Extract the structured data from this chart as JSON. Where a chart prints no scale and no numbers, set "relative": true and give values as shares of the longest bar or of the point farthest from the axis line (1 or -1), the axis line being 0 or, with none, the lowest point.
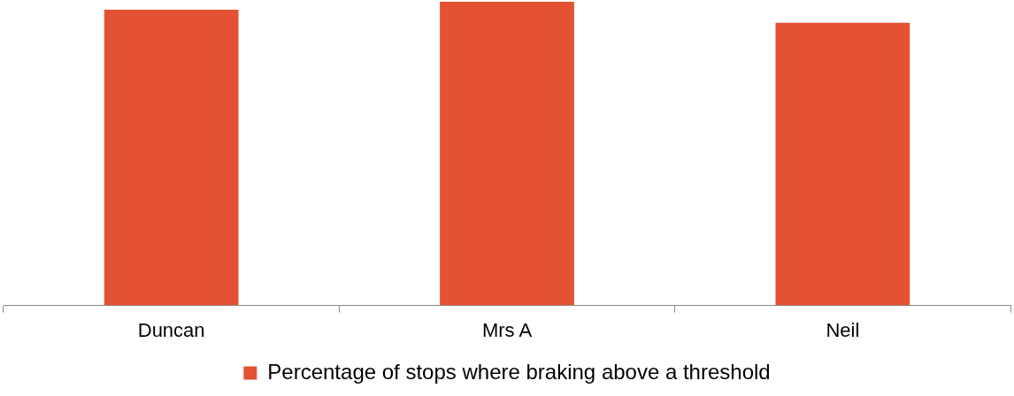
{
  "chart_data": {
    "type": "bar",
    "categories": [
      "Duncan",
      "Mrs A",
      "Neil"
    ],
    "relative": true,
    "series": [
      {
        "name": "Percentage of stops where braking above a threshold",
        "color": "#e35233",
        "values": [
          0.974,
          1,
          0.931
        ]
      }
    ],
    "legend": "bottom"
  }
}
